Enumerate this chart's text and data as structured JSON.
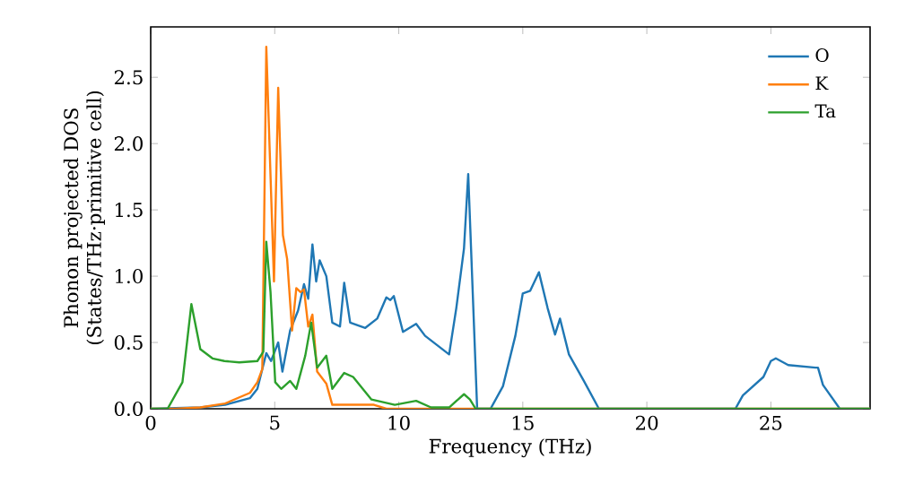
{
  "chart_data": {
    "type": "line",
    "xlabel": "Frequency (THz)",
    "ylabel": "Phonon projected DOS\n(States/THz·primitive cell)",
    "xlim": [
      0,
      29
    ],
    "ylim": [
      0,
      2.88
    ],
    "xticks": [
      0,
      5,
      10,
      15,
      20,
      25
    ],
    "yticks": [
      {
        "value": 0,
        "label": "0.0"
      },
      0.5,
      {
        "value": 1,
        "label": "1.0"
      },
      1.5,
      {
        "value": 2,
        "label": "2.0"
      },
      2.5
    ],
    "legend": "top right",
    "grid": false,
    "series": [
      {
        "name": "O",
        "color": "#1f77b4",
        "x": [
          0,
          2,
          3,
          4,
          4.3,
          4.66,
          4.85,
          5.14,
          5.31,
          5.62,
          5.94,
          6.18,
          6.35,
          6.52,
          6.67,
          6.81,
          7.08,
          7.32,
          7.63,
          7.8,
          8.04,
          8.65,
          9.13,
          9.5,
          9.66,
          9.8,
          10.17,
          10.7,
          11.06,
          12.03,
          12.32,
          12.63,
          12.8,
          13.16,
          13.7,
          14.2,
          14.7,
          15.0,
          15.3,
          15.65,
          16.0,
          16.3,
          16.5,
          16.86,
          17.46,
          18.07,
          23.57,
          23.87,
          24.7,
          25.0,
          25.2,
          25.7,
          26.8,
          26.9,
          27.1,
          27.78,
          29
        ],
        "values": [
          0,
          0.01,
          0.03,
          0.08,
          0.15,
          0.42,
          0.36,
          0.5,
          0.28,
          0.59,
          0.74,
          0.94,
          0.83,
          1.24,
          0.96,
          1.12,
          1.0,
          0.65,
          0.62,
          0.95,
          0.65,
          0.61,
          0.68,
          0.84,
          0.82,
          0.85,
          0.58,
          0.64,
          0.55,
          0.41,
          0.76,
          1.21,
          1.77,
          0,
          0,
          0.17,
          0.55,
          0.87,
          0.89,
          1.03,
          0.76,
          0.56,
          0.68,
          0.41,
          0.21,
          0,
          0,
          0.1,
          0.24,
          0.36,
          0.38,
          0.33,
          0.31,
          0.31,
          0.18,
          0,
          0
        ]
      },
      {
        "name": "K",
        "color": "#ff7f0e",
        "x": [
          0,
          1,
          2,
          3,
          4,
          4.3,
          4.5,
          4.66,
          4.97,
          5.14,
          5.33,
          5.5,
          5.7,
          5.87,
          6.04,
          6.18,
          6.35,
          6.52,
          6.71,
          7.08,
          7.32,
          9,
          9.5,
          29
        ],
        "values": [
          0,
          0.0,
          0.01,
          0.04,
          0.12,
          0.2,
          0.3,
          2.73,
          0.96,
          2.42,
          1.31,
          1.13,
          0.59,
          0.91,
          0.88,
          0.9,
          0.62,
          0.71,
          0.28,
          0.19,
          0.03,
          0.03,
          0,
          0
        ]
      },
      {
        "name": "Ta",
        "color": "#2ca02c",
        "x": [
          0,
          0.68,
          1.28,
          1.64,
          2.0,
          2.49,
          2.97,
          3.57,
          4.3,
          4.54,
          4.66,
          4.83,
          5.02,
          5.26,
          5.62,
          5.87,
          6.23,
          6.47,
          6.71,
          7.08,
          7.32,
          7.8,
          8.16,
          8.9,
          9.84,
          10.7,
          11.3,
          12.03,
          12.63,
          12.87,
          13.1,
          29
        ],
        "values": [
          0,
          0,
          0.2,
          0.79,
          0.45,
          0.38,
          0.36,
          0.35,
          0.36,
          0.43,
          1.26,
          0.88,
          0.2,
          0.15,
          0.21,
          0.15,
          0.4,
          0.65,
          0.31,
          0.4,
          0.15,
          0.27,
          0.24,
          0.07,
          0.03,
          0.06,
          0.01,
          0.01,
          0.11,
          0.07,
          0,
          0
        ]
      }
    ]
  }
}
